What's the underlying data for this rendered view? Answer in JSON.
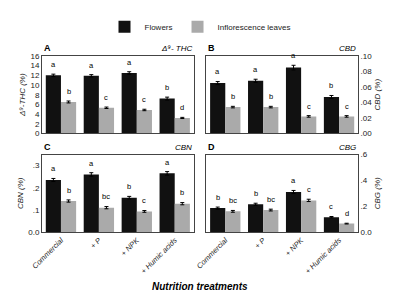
{
  "chart_data": [
    {
      "type": "bar",
      "annotations": [
        "A",
        "Δ⁹- THC"
      ],
      "ylabel": "Δ⁹-THC (%)",
      "categories": [
        "Commercial",
        "+ P",
        "+ NPK",
        "+ Humic acids"
      ],
      "series": [
        {
          "color": "#111111",
          "values": [
            12.0,
            11.9,
            12.5,
            7.2
          ],
          "errors": [
            0.25,
            0.25,
            0.25,
            0.3
          ],
          "letters": [
            "a",
            "a",
            "a",
            "b"
          ]
        },
        {
          "color": "#aaaaaa",
          "values": [
            6.5,
            5.3,
            4.85,
            3.2
          ],
          "errors": [
            0.2,
            0.15,
            0.15,
            0.12
          ],
          "letters": [
            "b",
            "c",
            "c",
            "d"
          ]
        }
      ],
      "ylim": [
        0,
        16
      ],
      "yticks": [
        0,
        2,
        4,
        6,
        8,
        10,
        12,
        14,
        16
      ],
      "grid": false,
      "tick_labels": "y"
    },
    {
      "type": "bar",
      "annotations": [
        "B",
        "CBD"
      ],
      "ylabel": "CBD (%)",
      "categories": [
        "Commercial",
        "+ P",
        "+ NPK",
        "+ Humic acids"
      ],
      "series": [
        {
          "name": "Flowers",
          "color": "#111111",
          "values": [
            0.065,
            0.068,
            0.085,
            0.047
          ],
          "errors": [
            0.002,
            0.002,
            0.003,
            0.002
          ],
          "letters": [
            "a",
            "a",
            "a",
            "b"
          ]
        },
        {
          "name": "Inflorescence leaves",
          "color": "#aaaaaa",
          "values": [
            0.034,
            0.034,
            0.022,
            0.022
          ],
          "errors": [
            0.001,
            0.001,
            0.001,
            0.001
          ],
          "letters": [
            "b",
            "b",
            "c",
            "c"
          ]
        }
      ],
      "ylim": [
        0.0,
        0.1
      ],
      "yticks": [
        {
          "value": 0.0,
          "label": ".00"
        },
        {
          "value": 0.02,
          "label": ".02"
        },
        {
          "value": 0.04,
          "label": ".04"
        },
        {
          "value": 0.06,
          "label": ".06"
        },
        {
          "value": 0.08,
          "label": ".08"
        },
        {
          "value": 0.1,
          "label": ".10"
        }
      ],
      "grid": false,
      "legend": "top",
      "tick_labels": "y"
    },
    {
      "type": "bar",
      "annotations": [
        "C",
        "CBN"
      ],
      "ylabel": "CBN (%)",
      "xlabel": "Nutrition treatments",
      "categories": [
        "Commercial",
        "+ P",
        "+ NPK",
        "+ Humic acids"
      ],
      "series": [
        {
          "color": "#111111",
          "values": [
            0.235,
            0.26,
            0.155,
            0.265
          ],
          "errors": [
            0.007,
            0.008,
            0.006,
            0.008
          ],
          "letters": [
            "a",
            "a",
            "b",
            "a"
          ]
        },
        {
          "color": "#aaaaaa",
          "values": [
            0.14,
            0.11,
            0.093,
            0.128
          ],
          "errors": [
            0.005,
            0.005,
            0.004,
            0.005
          ],
          "letters": [
            "b",
            "bc",
            "c",
            "b"
          ]
        }
      ],
      "ylim": [
        0.0,
        0.35
      ],
      "yticks": [
        {
          "value": 0.0,
          "label": "0.0"
        },
        {
          "value": 0.1,
          "label": ".1"
        },
        {
          "value": 0.2,
          "label": ".2"
        },
        {
          "value": 0.3,
          "label": ".3"
        }
      ],
      "grid": false
    },
    {
      "type": "bar",
      "annotations": [
        "D",
        "CBG"
      ],
      "ylabel": "CBG (%)",
      "categories": [
        "Commercial",
        "+ P",
        "+ NPK",
        "+ Humic acids"
      ],
      "series": [
        {
          "color": "#111111",
          "values": [
            0.185,
            0.215,
            0.31,
            0.115
          ],
          "errors": [
            0.008,
            0.008,
            0.012,
            0.005
          ],
          "letters": [
            "b",
            "b",
            "a",
            "c"
          ]
        },
        {
          "color": "#aaaaaa",
          "values": [
            0.16,
            0.17,
            0.245,
            0.065
          ],
          "errors": [
            0.007,
            0.007,
            0.009,
            0.003
          ],
          "letters": [
            "bc",
            "bc",
            "c",
            "d"
          ]
        }
      ],
      "ylim": [
        0.0,
        0.6
      ],
      "yticks": [
        {
          "value": 0.0,
          "label": "0.0"
        },
        {
          "value": 0.2,
          "label": ".2"
        },
        {
          "value": 0.4,
          "label": ".4"
        },
        {
          "value": 0.6,
          "label": ".6"
        }
      ],
      "grid": false
    }
  ]
}
